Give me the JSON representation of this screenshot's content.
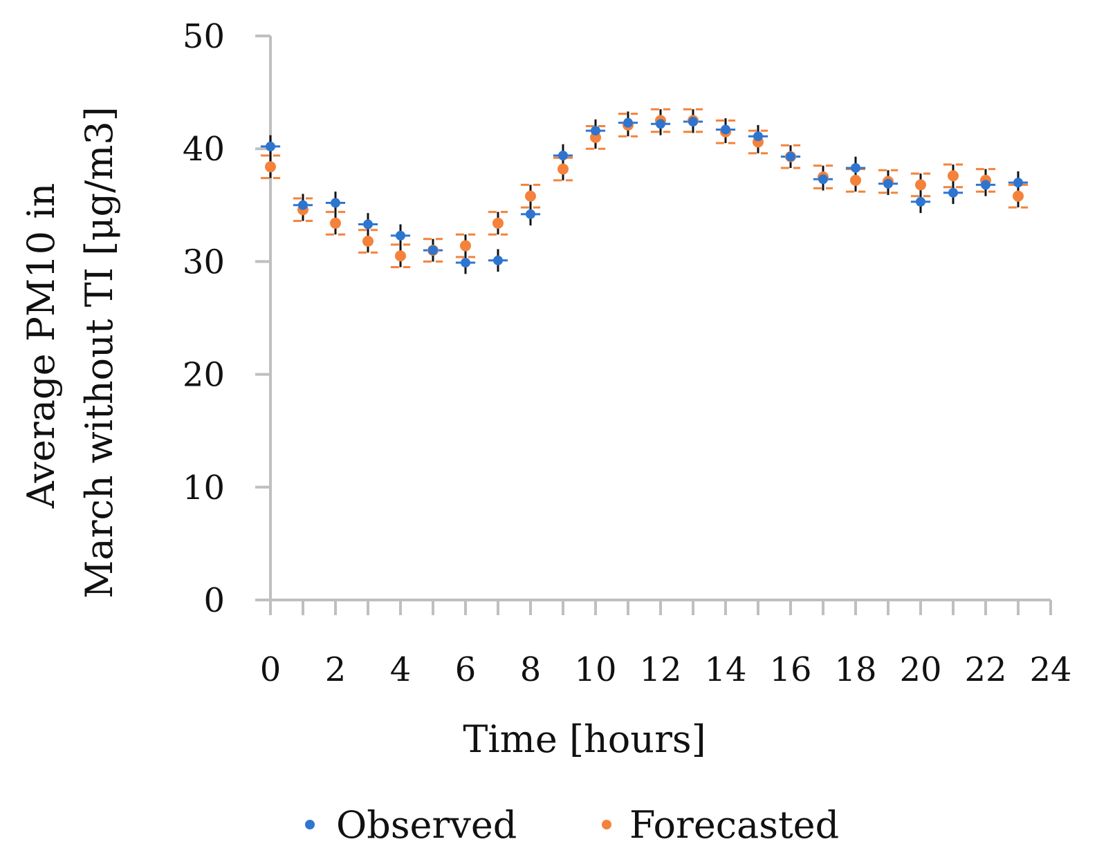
{
  "chart_data": {
    "type": "scatter",
    "title": "",
    "xlabel": "Time [hours]",
    "ylabel_line1": "Average PM10 in",
    "ylabel_line2": "March without TI [μg/m3]",
    "xlim": [
      0,
      24
    ],
    "ylim": [
      0,
      50
    ],
    "xticks": [
      0,
      2,
      4,
      6,
      8,
      10,
      12,
      14,
      16,
      18,
      20,
      22,
      24
    ],
    "yticks": [
      0,
      10,
      20,
      30,
      40,
      50
    ],
    "grid": false,
    "legend_position": "bottom",
    "series": [
      {
        "name": "Observed",
        "color": "#2E75D0",
        "error_bar_color": "#111111",
        "x": [
          0,
          1,
          2,
          3,
          4,
          5,
          6,
          7,
          8,
          9,
          10,
          11,
          12,
          13,
          14,
          15,
          16,
          17,
          18,
          19,
          20,
          21,
          22,
          23
        ],
        "y": [
          40.2,
          35.0,
          35.2,
          33.3,
          32.3,
          31.0,
          29.9,
          30.1,
          34.2,
          39.4,
          41.6,
          42.3,
          42.2,
          42.4,
          41.7,
          41.1,
          39.3,
          37.3,
          38.3,
          36.9,
          35.3,
          36.1,
          36.8,
          37.0
        ],
        "y_error": [
          1.0,
          1.0,
          1.0,
          1.0,
          1.0,
          1.0,
          1.0,
          1.0,
          1.0,
          1.0,
          1.0,
          1.0,
          1.0,
          1.0,
          1.0,
          1.0,
          1.0,
          1.0,
          1.0,
          1.0,
          1.0,
          1.0,
          1.0,
          1.0
        ],
        "x_error": [
          0.3,
          0.3,
          0.3,
          0.3,
          0.3,
          0.3,
          0.3,
          0.3,
          0.3,
          0.3,
          0.3,
          0.3,
          0.3,
          0.3,
          0.3,
          0.3,
          0.3,
          0.3,
          0.3,
          0.3,
          0.3,
          0.3,
          0.3,
          0.3
        ]
      },
      {
        "name": "Forecasted",
        "color": "#F4823A",
        "error_bar_color": "#F4823A",
        "x": [
          0,
          1,
          2,
          3,
          4,
          5,
          6,
          7,
          8,
          9,
          10,
          11,
          12,
          13,
          14,
          15,
          16,
          17,
          18,
          19,
          20,
          21,
          22,
          23
        ],
        "y": [
          38.4,
          34.6,
          33.4,
          31.8,
          30.5,
          31.0,
          31.4,
          33.4,
          35.8,
          38.2,
          41.0,
          42.1,
          42.5,
          42.5,
          41.5,
          40.6,
          39.3,
          37.5,
          37.2,
          37.1,
          36.8,
          37.6,
          37.2,
          35.8
        ],
        "y_error": [
          1.0,
          1.0,
          1.0,
          1.0,
          1.0,
          1.0,
          1.0,
          1.0,
          1.0,
          1.0,
          1.0,
          1.0,
          1.0,
          1.0,
          1.0,
          1.0,
          1.0,
          1.0,
          1.0,
          1.0,
          1.0,
          1.0,
          1.0,
          1.0
        ],
        "x_error": [
          0.3,
          0.3,
          0.3,
          0.3,
          0.3,
          0.3,
          0.3,
          0.3,
          0.3,
          0.3,
          0.3,
          0.3,
          0.3,
          0.3,
          0.3,
          0.3,
          0.3,
          0.3,
          0.3,
          0.3,
          0.3,
          0.3,
          0.3,
          0.3
        ]
      }
    ],
    "axis_color": "#BFBFBF"
  }
}
